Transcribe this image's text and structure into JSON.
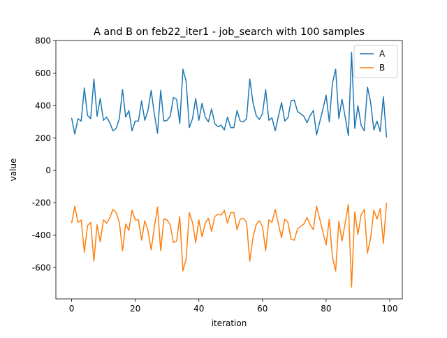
{
  "chart_data": {
    "type": "line",
    "title": "A and B on feb22_iter1 - job_search with 100 samples",
    "xlabel": "iteration",
    "ylabel": "value",
    "x": [
      0,
      1,
      2,
      3,
      4,
      5,
      6,
      7,
      8,
      9,
      10,
      11,
      12,
      13,
      14,
      15,
      16,
      17,
      18,
      19,
      20,
      21,
      22,
      23,
      24,
      25,
      26,
      27,
      28,
      29,
      30,
      31,
      32,
      33,
      34,
      35,
      36,
      37,
      38,
      39,
      40,
      41,
      42,
      43,
      44,
      45,
      46,
      47,
      48,
      49,
      50,
      51,
      52,
      53,
      54,
      55,
      56,
      57,
      58,
      59,
      60,
      61,
      62,
      63,
      64,
      65,
      66,
      67,
      68,
      69,
      70,
      71,
      72,
      73,
      74,
      75,
      76,
      77,
      78,
      79,
      80,
      81,
      82,
      83,
      84,
      85,
      86,
      87,
      88,
      89,
      90,
      91,
      92,
      93,
      94,
      95,
      96,
      97,
      98,
      99
    ],
    "series": [
      {
        "name": "A",
        "color": "#1f77b4",
        "values": [
          325,
          225,
          320,
          305,
          510,
          340,
          320,
          565,
          335,
          445,
          310,
          330,
          295,
          245,
          260,
          320,
          500,
          330,
          370,
          245,
          305,
          305,
          430,
          310,
          370,
          495,
          350,
          230,
          495,
          305,
          310,
          335,
          450,
          440,
          290,
          625,
          550,
          265,
          320,
          445,
          310,
          415,
          330,
          300,
          380,
          290,
          270,
          280,
          250,
          330,
          265,
          265,
          370,
          305,
          300,
          320,
          565,
          420,
          340,
          315,
          350,
          500,
          310,
          325,
          245,
          335,
          420,
          305,
          325,
          430,
          435,
          365,
          350,
          335,
          295,
          340,
          370,
          220,
          300,
          380,
          465,
          300,
          540,
          625,
          320,
          440,
          330,
          215,
          730,
          260,
          400,
          280,
          245,
          515,
          420,
          250,
          305,
          240,
          455,
          205
        ]
      },
      {
        "name": "B",
        "color": "#ff7f0e",
        "values": [
          -325,
          -220,
          -320,
          -305,
          -505,
          -340,
          -320,
          -560,
          -335,
          -440,
          -305,
          -325,
          -290,
          -240,
          -260,
          -320,
          -495,
          -330,
          -370,
          -245,
          -305,
          -305,
          -430,
          -310,
          -370,
          -490,
          -350,
          -225,
          -495,
          -300,
          -305,
          -335,
          -445,
          -435,
          -285,
          -620,
          -545,
          -260,
          -320,
          -445,
          -305,
          -410,
          -325,
          -295,
          -375,
          -285,
          -270,
          -275,
          -245,
          -325,
          -260,
          -260,
          -365,
          -300,
          -295,
          -320,
          -560,
          -415,
          -335,
          -310,
          -345,
          -495,
          -305,
          -320,
          -240,
          -330,
          -415,
          -300,
          -320,
          -425,
          -430,
          -360,
          -345,
          -330,
          -290,
          -335,
          -365,
          -220,
          -300,
          -380,
          -460,
          -300,
          -535,
          -620,
          -315,
          -435,
          -325,
          -210,
          -720,
          -255,
          -395,
          -275,
          -240,
          -510,
          -415,
          -245,
          -300,
          -235,
          -450,
          -200
        ]
      }
    ],
    "xlim": [
      -4.95,
      103.95
    ],
    "xticks": [
      0,
      20,
      40,
      60,
      80,
      100
    ],
    "ylim": [
      -792.5,
      802.5
    ],
    "yticks": [
      -600,
      -400,
      -200,
      0,
      200,
      400,
      600,
      800
    ],
    "legend": "upper right"
  }
}
